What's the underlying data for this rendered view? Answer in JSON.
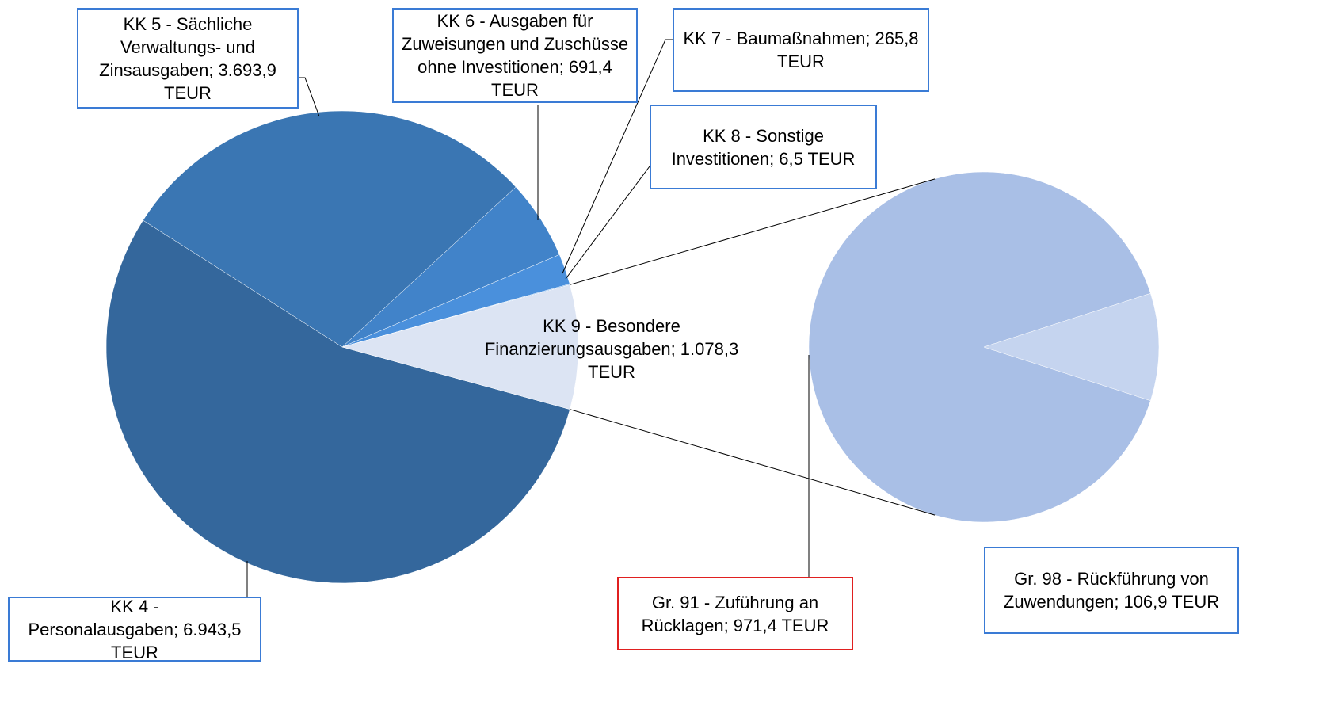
{
  "chart_data": [
    {
      "type": "pie",
      "categories": [
        "KK 4 - Personalausgaben;",
        "KK 5 - Sächliche Verwaltungs- und Zinsausgaben;",
        "KK 6 - Ausgaben für Zuweisungen und Zuschüsse ohne Investitionen;",
        "KK 7 - Baumaßnahmen;",
        "KK 8 - Sonstige Investitionen;",
        "KK 9 - Besondere Finanzierungsausgaben;"
      ],
      "values": [
        6943.5,
        3693.9,
        691.4,
        265.8,
        6.5,
        1078.3
      ],
      "value_labels": [
        "6.943,5 TEUR",
        "3.693,9 TEUR",
        "691,4 TEUR",
        "265,8 TEUR",
        "6,5 TEUR",
        "1.078,3 TEUR"
      ],
      "colors": [
        "#34679c",
        "#3a76b3",
        "#4183c9",
        "#4a90dc",
        "#4d95e2",
        "#dce4f3"
      ]
    },
    {
      "type": "pie",
      "categories": [
        "Gr. 91 - Zuführung an Rücklagen;",
        "Gr. 98 - Rückführung von Zuwendungen;"
      ],
      "values": [
        971.4,
        106.9
      ],
      "value_labels": [
        "971,4 TEUR",
        "106,9 TEUR"
      ],
      "colors": [
        "#a9bfe6",
        "#c5d4ef"
      ]
    }
  ]
}
